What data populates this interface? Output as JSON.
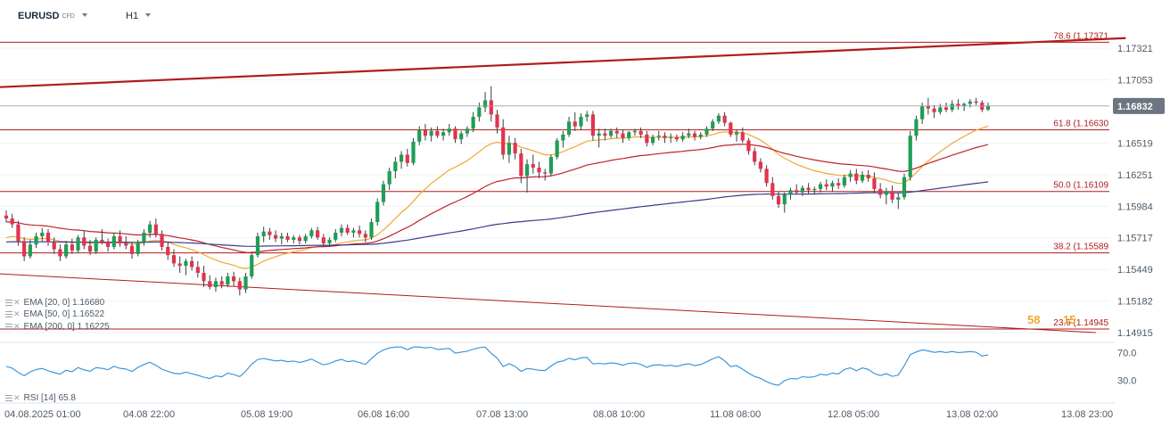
{
  "header": {
    "symbol": "EURUSD",
    "instrument_type": "CFD",
    "timeframe": "H1"
  },
  "chart_data": {
    "type": "candlestick",
    "price_axis": {
      "ticks": [
        "1.17321",
        "1.17053",
        "1.16519",
        "1.16251",
        "1.15984",
        "1.15717",
        "1.15449",
        "1.15182",
        "1.14915"
      ],
      "current_price": "1.16832",
      "range": [
        1.1487,
        1.1755
      ]
    },
    "time_axis": {
      "labels": [
        "04.08.2025  01:00",
        "04.08  22:00",
        "05.08  19:00",
        "06.08  16:00",
        "07.08  13:00",
        "08.08  10:00",
        "11.08  08:00",
        "12.08  05:00",
        "13.08  02:00",
        "13.08  23:00"
      ]
    },
    "fibonacci_levels": [
      {
        "label": "78.6 (1.17371",
        "price": 1.17371
      },
      {
        "label": "61.8 (1.16630",
        "price": 1.1663
      },
      {
        "label": "50.0 (1.16109",
        "price": 1.16109
      },
      {
        "label": "38.2 (1.15589",
        "price": 1.15589
      },
      {
        "label": "23.6 (1.14945",
        "price": 1.14945
      }
    ],
    "indicators": [
      {
        "label": "EMA  [20,  0]  1.16680",
        "color": "#f0a830"
      },
      {
        "label": "EMA  [50,  0]  1.16522",
        "color": "#c0222a"
      },
      {
        "label": "EMA  [200,  0]  1.16225",
        "color": "#3b3a8c"
      }
    ],
    "rsi": {
      "label": "RSI  [14]  65.8",
      "levels": [
        "70.0",
        "30.0"
      ],
      "color": "#2f8fd8"
    },
    "spread_display": {
      "bid_fragment": "58",
      "ask_fragment": "15"
    },
    "colors": {
      "up": "#1e9e55",
      "down": "#e2334d",
      "fib": "#b01c1c",
      "trend": "#b01c1c"
    },
    "candles": [
      [
        1.15905,
        1.1595,
        1.1585,
        1.1588
      ],
      [
        1.1588,
        1.1592,
        1.158,
        1.1583
      ],
      [
        1.1583,
        1.1586,
        1.1565,
        1.1569
      ],
      [
        1.1569,
        1.1572,
        1.1552,
        1.1556
      ],
      [
        1.1556,
        1.157,
        1.1554,
        1.1566
      ],
      [
        1.1566,
        1.1576,
        1.1563,
        1.1573
      ],
      [
        1.1573,
        1.158,
        1.1569,
        1.1576
      ],
      [
        1.1576,
        1.1579,
        1.1565,
        1.1568
      ],
      [
        1.1568,
        1.1572,
        1.1558,
        1.1562
      ],
      [
        1.1562,
        1.1566,
        1.1552,
        1.1556
      ],
      [
        1.1556,
        1.1569,
        1.1554,
        1.1566
      ],
      [
        1.1566,
        1.1571,
        1.1558,
        1.1561
      ],
      [
        1.1561,
        1.1574,
        1.1559,
        1.1572
      ],
      [
        1.1572,
        1.1578,
        1.1562,
        1.1565
      ],
      [
        1.1565,
        1.157,
        1.1557,
        1.156
      ],
      [
        1.156,
        1.1572,
        1.1558,
        1.157
      ],
      [
        1.157,
        1.1579,
        1.1566,
        1.1568
      ],
      [
        1.1568,
        1.1571,
        1.156,
        1.1564
      ],
      [
        1.1564,
        1.1576,
        1.1562,
        1.1573
      ],
      [
        1.1573,
        1.1578,
        1.1564,
        1.1567
      ],
      [
        1.1567,
        1.1573,
        1.1562,
        1.1565
      ],
      [
        1.1565,
        1.1568,
        1.1554,
        1.1558
      ],
      [
        1.1558,
        1.157,
        1.1556,
        1.1568
      ],
      [
        1.1568,
        1.1579,
        1.1565,
        1.1576
      ],
      [
        1.1576,
        1.1586,
        1.1572,
        1.1583
      ],
      [
        1.1583,
        1.1588,
        1.1572,
        1.1575
      ],
      [
        1.1575,
        1.1578,
        1.1561,
        1.1564
      ],
      [
        1.1564,
        1.1568,
        1.1553,
        1.1557
      ],
      [
        1.1557,
        1.1562,
        1.1547,
        1.155
      ],
      [
        1.155,
        1.1556,
        1.1542,
        1.1548
      ],
      [
        1.1548,
        1.1554,
        1.154,
        1.1552
      ],
      [
        1.1552,
        1.1556,
        1.1544,
        1.1547
      ],
      [
        1.1547,
        1.1552,
        1.1538,
        1.1542
      ],
      [
        1.1542,
        1.1548,
        1.153,
        1.1535
      ],
      [
        1.1535,
        1.154,
        1.1528,
        1.153
      ],
      [
        1.153,
        1.1538,
        1.1526,
        1.1535
      ],
      [
        1.1535,
        1.1539,
        1.1529,
        1.1532
      ],
      [
        1.1532,
        1.1542,
        1.153,
        1.1539
      ],
      [
        1.1539,
        1.1543,
        1.1531,
        1.1535
      ],
      [
        1.1535,
        1.1538,
        1.1523,
        1.1528
      ],
      [
        1.1528,
        1.1542,
        1.1525,
        1.1539
      ],
      [
        1.1539,
        1.156,
        1.1537,
        1.1557
      ],
      [
        1.1557,
        1.1576,
        1.1555,
        1.1573
      ],
      [
        1.1573,
        1.1581,
        1.1568,
        1.1577
      ],
      [
        1.1577,
        1.158,
        1.157,
        1.1574
      ],
      [
        1.1574,
        1.1578,
        1.1568,
        1.1571
      ],
      [
        1.1571,
        1.1576,
        1.1566,
        1.1573
      ],
      [
        1.1573,
        1.1576,
        1.1568,
        1.157
      ],
      [
        1.157,
        1.1574,
        1.1567,
        1.1572
      ],
      [
        1.1572,
        1.1574,
        1.1566,
        1.1569
      ],
      [
        1.1569,
        1.1575,
        1.1567,
        1.1573
      ],
      [
        1.1573,
        1.158,
        1.1571,
        1.1578
      ],
      [
        1.1578,
        1.1581,
        1.157,
        1.1572
      ],
      [
        1.1572,
        1.1575,
        1.1564,
        1.1567
      ],
      [
        1.1567,
        1.1572,
        1.1564,
        1.157
      ],
      [
        1.157,
        1.1579,
        1.1568,
        1.1576
      ],
      [
        1.1576,
        1.1583,
        1.1573,
        1.158
      ],
      [
        1.158,
        1.1583,
        1.1574,
        1.1576
      ],
      [
        1.1576,
        1.158,
        1.1572,
        1.1578
      ],
      [
        1.1578,
        1.1582,
        1.1572,
        1.1575
      ],
      [
        1.1575,
        1.1578,
        1.1568,
        1.1572
      ],
      [
        1.1572,
        1.1588,
        1.157,
        1.1585
      ],
      [
        1.1585,
        1.1605,
        1.1582,
        1.1602
      ],
      [
        1.1602,
        1.162,
        1.1599,
        1.1617
      ],
      [
        1.1617,
        1.1631,
        1.1612,
        1.1628
      ],
      [
        1.1628,
        1.164,
        1.1622,
        1.1636
      ],
      [
        1.1636,
        1.1645,
        1.163,
        1.1642
      ],
      [
        1.1642,
        1.1647,
        1.1632,
        1.1635
      ],
      [
        1.1635,
        1.1656,
        1.1633,
        1.1653
      ],
      [
        1.1653,
        1.1666,
        1.165,
        1.1663
      ],
      [
        1.1663,
        1.1668,
        1.1654,
        1.1658
      ],
      [
        1.1658,
        1.1665,
        1.1653,
        1.1662
      ],
      [
        1.1662,
        1.1666,
        1.1656,
        1.1658
      ],
      [
        1.1658,
        1.1664,
        1.1654,
        1.1661
      ],
      [
        1.1661,
        1.1668,
        1.1658,
        1.1664
      ],
      [
        1.1664,
        1.1666,
        1.1652,
        1.1655
      ],
      [
        1.1655,
        1.1662,
        1.1651,
        1.166
      ],
      [
        1.166,
        1.1666,
        1.1657,
        1.1664
      ],
      [
        1.1664,
        1.1678,
        1.1661,
        1.1674
      ],
      [
        1.1674,
        1.1686,
        1.167,
        1.1682
      ],
      [
        1.1682,
        1.1695,
        1.1678,
        1.1688
      ],
      [
        1.1688,
        1.17,
        1.167,
        1.1676
      ],
      [
        1.1676,
        1.168,
        1.166,
        1.1665
      ],
      [
        1.1665,
        1.1672,
        1.1638,
        1.1642
      ],
      [
        1.1642,
        1.1658,
        1.1635,
        1.1652
      ],
      [
        1.1652,
        1.1656,
        1.1638,
        1.1643
      ],
      [
        1.1643,
        1.1647,
        1.1618,
        1.1624
      ],
      [
        1.1624,
        1.1638,
        1.161,
        1.1634
      ],
      [
        1.1634,
        1.1642,
        1.1626,
        1.1631
      ],
      [
        1.1631,
        1.1636,
        1.1622,
        1.1627
      ],
      [
        1.1627,
        1.163,
        1.162,
        1.1626
      ],
      [
        1.1626,
        1.1642,
        1.1624,
        1.164
      ],
      [
        1.164,
        1.1656,
        1.1638,
        1.1654
      ],
      [
        1.1654,
        1.1662,
        1.1648,
        1.1659
      ],
      [
        1.1659,
        1.1674,
        1.1657,
        1.167
      ],
      [
        1.167,
        1.1678,
        1.1662,
        1.1666
      ],
      [
        1.1666,
        1.1677,
        1.1663,
        1.1674
      ],
      [
        1.1674,
        1.1679,
        1.167,
        1.1676
      ],
      [
        1.1676,
        1.1679,
        1.1654,
        1.1658
      ],
      [
        1.1658,
        1.1664,
        1.1648,
        1.166
      ],
      [
        1.166,
        1.1664,
        1.1654,
        1.1658
      ],
      [
        1.1658,
        1.1664,
        1.1656,
        1.1662
      ],
      [
        1.1662,
        1.1665,
        1.1656,
        1.166
      ],
      [
        1.166,
        1.1663,
        1.1652,
        1.1656
      ],
      [
        1.1656,
        1.1662,
        1.1654,
        1.1661
      ],
      [
        1.1661,
        1.1664,
        1.1658,
        1.1662
      ],
      [
        1.1662,
        1.1665,
        1.1656,
        1.1659
      ],
      [
        1.1659,
        1.1662,
        1.1649,
        1.1652
      ],
      [
        1.1652,
        1.1659,
        1.165,
        1.1657
      ],
      [
        1.1657,
        1.1662,
        1.1654,
        1.1658
      ],
      [
        1.1658,
        1.1661,
        1.1652,
        1.1656
      ],
      [
        1.1656,
        1.166,
        1.1652,
        1.1657
      ],
      [
        1.1657,
        1.1659,
        1.1653,
        1.1655
      ],
      [
        1.1655,
        1.1661,
        1.1653,
        1.1658
      ],
      [
        1.1658,
        1.1664,
        1.1656,
        1.166
      ],
      [
        1.166,
        1.1662,
        1.1654,
        1.1657
      ],
      [
        1.1657,
        1.1661,
        1.1655,
        1.1659
      ],
      [
        1.1659,
        1.1666,
        1.1657,
        1.1664
      ],
      [
        1.1664,
        1.1672,
        1.1662,
        1.167
      ],
      [
        1.167,
        1.1677,
        1.1668,
        1.1675
      ],
      [
        1.1675,
        1.1678,
        1.1666,
        1.1669
      ],
      [
        1.1669,
        1.167,
        1.1657,
        1.1659
      ],
      [
        1.1659,
        1.1663,
        1.1653,
        1.1661
      ],
      [
        1.1661,
        1.1665,
        1.1652,
        1.1654
      ],
      [
        1.1654,
        1.1656,
        1.1642,
        1.1645
      ],
      [
        1.1645,
        1.1648,
        1.1633,
        1.1636
      ],
      [
        1.1636,
        1.1639,
        1.1627,
        1.163
      ],
      [
        1.163,
        1.1633,
        1.1615,
        1.1618
      ],
      [
        1.1618,
        1.1623,
        1.1604,
        1.1607
      ],
      [
        1.1607,
        1.1611,
        1.1597,
        1.16
      ],
      [
        1.16,
        1.161,
        1.1593,
        1.1608
      ],
      [
        1.1608,
        1.1614,
        1.1604,
        1.1612
      ],
      [
        1.1612,
        1.1617,
        1.1608,
        1.161
      ],
      [
        1.161,
        1.1616,
        1.1607,
        1.1614
      ],
      [
        1.1614,
        1.1618,
        1.1609,
        1.1612
      ],
      [
        1.1612,
        1.1615,
        1.1608,
        1.1613
      ],
      [
        1.1613,
        1.1619,
        1.161,
        1.1617
      ],
      [
        1.1617,
        1.1621,
        1.1612,
        1.1615
      ],
      [
        1.1615,
        1.162,
        1.1611,
        1.1618
      ],
      [
        1.1618,
        1.1622,
        1.1613,
        1.1616
      ],
      [
        1.1616,
        1.1625,
        1.1614,
        1.1623
      ],
      [
        1.1623,
        1.1629,
        1.1619,
        1.1626
      ],
      [
        1.1626,
        1.163,
        1.1617,
        1.162
      ],
      [
        1.162,
        1.1628,
        1.1618,
        1.1625
      ],
      [
        1.1625,
        1.1629,
        1.1619,
        1.1622
      ],
      [
        1.1622,
        1.1627,
        1.161,
        1.1613
      ],
      [
        1.1613,
        1.1618,
        1.1605,
        1.1608
      ],
      [
        1.1608,
        1.1614,
        1.16,
        1.1611
      ],
      [
        1.1611,
        1.1616,
        1.1601,
        1.1604
      ],
      [
        1.1604,
        1.161,
        1.1596,
        1.1606
      ],
      [
        1.1606,
        1.1626,
        1.1604,
        1.1623
      ],
      [
        1.1623,
        1.1662,
        1.162,
        1.1658
      ],
      [
        1.1658,
        1.1675,
        1.1654,
        1.1672
      ],
      [
        1.1672,
        1.1686,
        1.1668,
        1.1683
      ],
      [
        1.1683,
        1.169,
        1.1676,
        1.1681
      ],
      [
        1.1681,
        1.1684,
        1.1673,
        1.1678
      ],
      [
        1.1678,
        1.1685,
        1.1676,
        1.1682
      ],
      [
        1.1682,
        1.1686,
        1.1678,
        1.168
      ],
      [
        1.168,
        1.1688,
        1.1678,
        1.1685
      ],
      [
        1.1685,
        1.1689,
        1.168,
        1.1683
      ],
      [
        1.1683,
        1.1686,
        1.1679,
        1.1685
      ],
      [
        1.1685,
        1.1689,
        1.1682,
        1.1687
      ],
      [
        1.1687,
        1.169,
        1.1684,
        1.1686
      ],
      [
        1.1686,
        1.1688,
        1.1678,
        1.168
      ],
      [
        1.168,
        1.1686,
        1.1679,
        1.16832
      ]
    ]
  }
}
